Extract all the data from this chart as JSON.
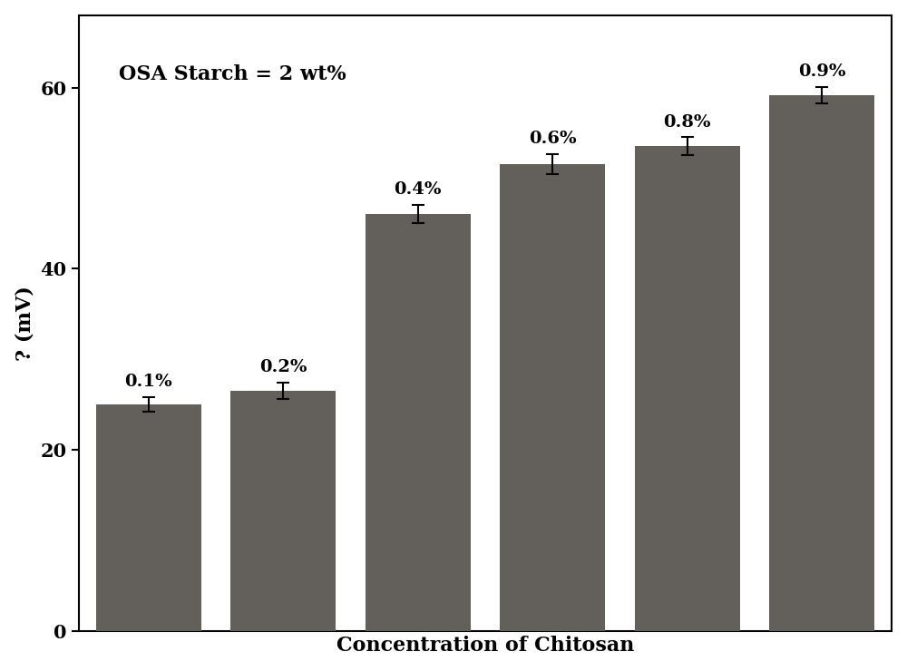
{
  "categories": [
    "0.1%",
    "0.2%",
    "0.4%",
    "0.6%",
    "0.8%",
    "0.9%"
  ],
  "values": [
    25.0,
    26.5,
    46.0,
    51.5,
    53.5,
    59.2
  ],
  "errors": [
    0.8,
    0.9,
    1.0,
    1.1,
    1.0,
    0.9
  ],
  "bar_color": "#635f5a",
  "background_color": "#ffffff",
  "ylabel": "? (mV)",
  "xlabel": "Concentration of Chitosan",
  "annotation": "OSA Starch = 2 wt%",
  "ylim": [
    0,
    68
  ],
  "yticks": [
    0,
    20,
    40,
    60
  ],
  "bar_width": 0.78,
  "label_fontsize": 16,
  "tick_fontsize": 15,
  "annot_fontsize": 16,
  "bar_label_fontsize": 14
}
